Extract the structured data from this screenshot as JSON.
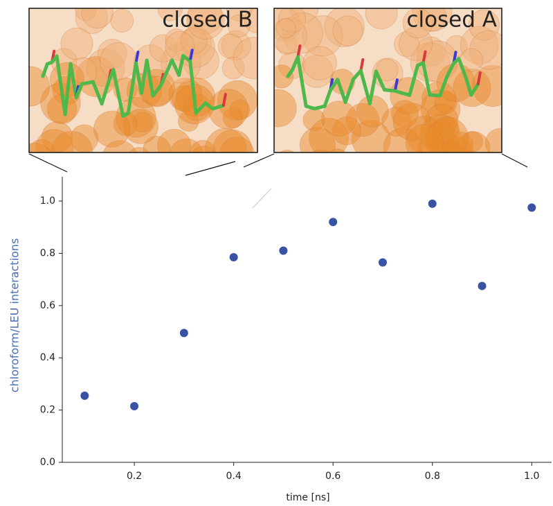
{
  "chart_data": {
    "type": "scatter",
    "insets": [
      "closed B",
      "closed A"
    ],
    "x_label": "time [ns]",
    "y_label": "chloroform/LEU interactions",
    "x": [
      0.1,
      0.2,
      0.3,
      0.4,
      0.5,
      0.6,
      0.7,
      0.8,
      0.9,
      1.0
    ],
    "series": [
      {
        "color": "#3953a4",
        "values": [
          0.255,
          0.215,
          0.495,
          0.785,
          0.81,
          0.92,
          0.765,
          0.99,
          0.675,
          0.975
        ]
      }
    ],
    "xlim": [
      0.055,
      1.04
    ],
    "ylim": [
      0,
      1.093
    ],
    "xticks": [
      0.2,
      0.4,
      0.6,
      0.8,
      {
        "value": 1.0,
        "label": "1.0"
      }
    ],
    "yticks": [
      {
        "value": 0,
        "label": "0.0"
      },
      0.2,
      0.4,
      0.6,
      0.8,
      {
        "value": 1.0,
        "label": "1.0"
      }
    ],
    "y_label_color": "#4a6cb3"
  }
}
